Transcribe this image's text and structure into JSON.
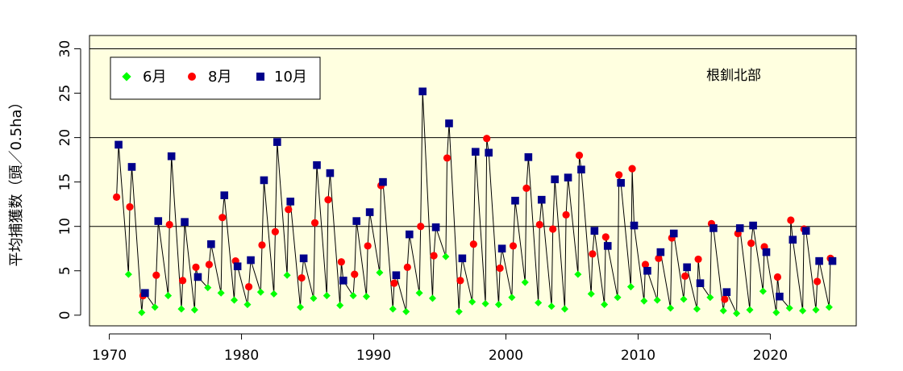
{
  "chart_data": {
    "type": "scatter",
    "ylabel": "平均捕獲数（頭／0.5ha）",
    "annotation": "根釧北部",
    "xlim": [
      1968.5,
      2026.5
    ],
    "ylim": [
      -1.2,
      31.5
    ],
    "x_ticks": [
      1970,
      1980,
      1990,
      2000,
      2010,
      2020
    ],
    "y_ticks": [
      0,
      5,
      10,
      15,
      20,
      25,
      30
    ],
    "grid_y": [
      10,
      20,
      30
    ],
    "legend": {
      "position": "top-left"
    },
    "colors": {
      "background": "#ffffe0",
      "june": "#00ff00",
      "august": "#ff0000",
      "october": "#00008b",
      "line": "#000000"
    },
    "series": [
      {
        "name": "6月",
        "marker": "diamond",
        "color": "#00ff00",
        "x": [
          1971.45,
          1972.45,
          1973.45,
          1974.45,
          1975.45,
          1976.45,
          1977.45,
          1978.45,
          1979.45,
          1980.45,
          1981.45,
          1982.45,
          1983.45,
          1984.45,
          1985.45,
          1986.45,
          1987.45,
          1988.45,
          1989.45,
          1990.45,
          1991.45,
          1992.45,
          1993.45,
          1994.45,
          1995.45,
          1996.45,
          1997.45,
          1998.45,
          1999.45,
          2000.45,
          2001.45,
          2002.45,
          2003.45,
          2004.45,
          2005.45,
          2006.45,
          2007.45,
          2008.45,
          2009.45,
          2010.45,
          2011.45,
          2012.45,
          2013.45,
          2014.45,
          2015.45,
          2016.45,
          2017.45,
          2018.45,
          2019.45,
          2020.45,
          2021.45,
          2022.45,
          2023.45,
          2024.45
        ],
        "y": [
          4.6,
          0.3,
          0.9,
          2.2,
          0.7,
          0.6,
          3.1,
          2.5,
          1.7,
          1.2,
          2.6,
          2.4,
          4.5,
          0.9,
          1.9,
          2.2,
          1.1,
          2.2,
          2.1,
          4.8,
          0.7,
          0.4,
          2.5,
          1.9,
          6.6,
          0.4,
          1.5,
          1.3,
          1.2,
          2.0,
          3.7,
          1.4,
          1.0,
          0.7,
          4.6,
          2.4,
          1.2,
          2.0,
          3.2,
          1.6,
          1.7,
          0.8,
          1.8,
          0.7,
          2.0,
          0.5,
          0.2,
          0.6,
          2.7,
          0.3,
          0.8,
          0.5,
          0.6,
          0.9
        ]
      },
      {
        "name": "8月",
        "marker": "circle",
        "color": "#ff0000",
        "x": [
          1970.55,
          1971.55,
          1972.55,
          1973.55,
          1974.55,
          1975.55,
          1976.55,
          1977.55,
          1978.55,
          1979.55,
          1980.55,
          1981.55,
          1982.55,
          1983.55,
          1984.55,
          1985.55,
          1986.55,
          1987.55,
          1988.55,
          1989.55,
          1990.55,
          1991.55,
          1992.55,
          1993.55,
          1994.55,
          1995.55,
          1996.55,
          1997.55,
          1998.55,
          1999.55,
          2000.55,
          2001.55,
          2002.55,
          2003.55,
          2004.55,
          2005.55,
          2006.55,
          2007.55,
          2008.55,
          2009.55,
          2010.55,
          2011.55,
          2012.55,
          2013.55,
          2014.55,
          2015.55,
          2016.55,
          2017.55,
          2018.55,
          2019.55,
          2020.55,
          2021.55,
          2022.55,
          2023.55,
          2024.55
        ],
        "y": [
          13.3,
          12.2,
          2.2,
          4.5,
          10.2,
          3.9,
          5.4,
          5.7,
          11.0,
          6.1,
          3.2,
          7.9,
          9.4,
          11.9,
          4.2,
          10.4,
          13.0,
          6.0,
          4.6,
          7.8,
          14.6,
          3.6,
          5.4,
          10.0,
          6.7,
          17.7,
          3.9,
          8.0,
          19.9,
          5.3,
          7.8,
          14.3,
          10.2,
          9.7,
          11.3,
          18.0,
          6.9,
          8.8,
          15.8,
          16.5,
          5.7,
          6.4,
          8.7,
          4.4,
          6.3,
          10.3,
          1.8,
          9.2,
          8.1,
          7.7,
          4.3,
          10.7,
          9.7,
          3.8,
          6.4
        ]
      },
      {
        "name": "10月",
        "marker": "square",
        "color": "#00008b",
        "x": [
          1970.7,
          1971.7,
          1972.7,
          1973.7,
          1974.7,
          1975.7,
          1976.7,
          1977.7,
          1978.7,
          1979.7,
          1980.7,
          1981.7,
          1982.7,
          1983.7,
          1984.7,
          1985.7,
          1986.7,
          1987.7,
          1988.7,
          1989.7,
          1990.7,
          1991.7,
          1992.7,
          1993.7,
          1994.7,
          1995.7,
          1996.7,
          1997.7,
          1998.7,
          1999.7,
          2000.7,
          2001.7,
          2002.7,
          2003.7,
          2004.7,
          2005.7,
          2006.7,
          2007.7,
          2008.7,
          2009.7,
          2010.7,
          2011.7,
          2012.7,
          2013.7,
          2014.7,
          2015.7,
          2016.7,
          2017.7,
          2018.7,
          2019.7,
          2020.7,
          2021.7,
          2022.7,
          2023.7,
          2024.7
        ],
        "y": [
          19.2,
          16.7,
          2.5,
          10.6,
          17.9,
          10.5,
          4.3,
          8.0,
          13.5,
          5.5,
          6.2,
          15.2,
          19.5,
          12.8,
          6.4,
          16.9,
          16.0,
          3.9,
          10.6,
          11.6,
          15.0,
          4.5,
          9.1,
          25.2,
          9.9,
          21.6,
          6.4,
          18.4,
          18.3,
          7.5,
          12.9,
          17.8,
          13.0,
          15.3,
          15.5,
          16.4,
          9.5,
          7.8,
          14.9,
          10.1,
          5.0,
          7.1,
          9.2,
          5.4,
          3.6,
          9.8,
          2.6,
          9.8,
          10.1,
          7.1,
          2.1,
          8.5,
          9.5,
          6.1,
          6.1
        ]
      }
    ]
  }
}
